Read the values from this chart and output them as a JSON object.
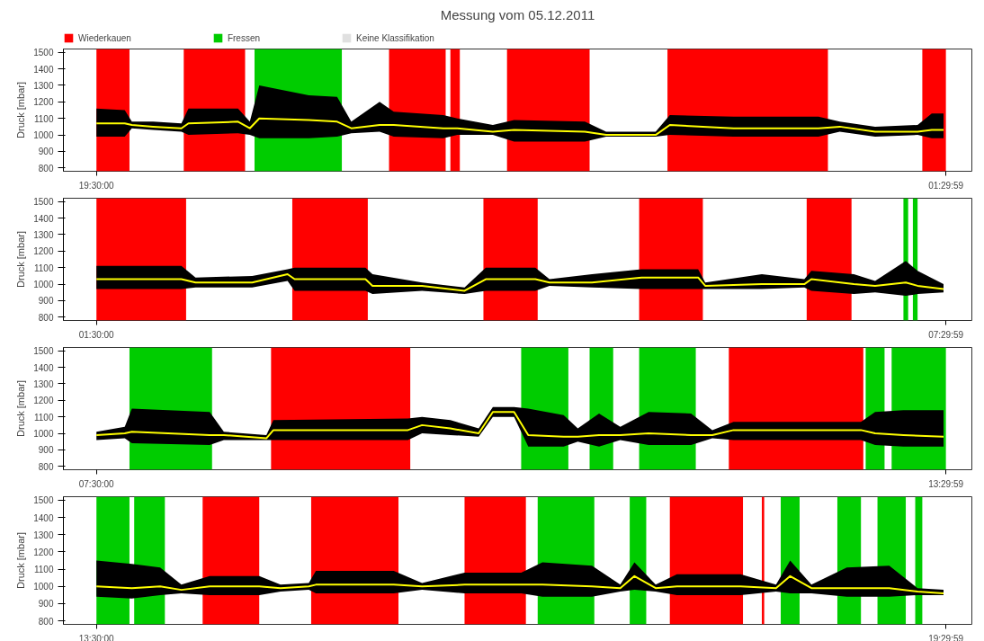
{
  "chart_data": [
    {
      "type": "line",
      "title": "Messung vom 05.12.2011",
      "ylabel": "Druck [mbar]",
      "legend": "top",
      "grid": false,
      "xlim": [
        "2011-12-05T19:16",
        "2011-12-06T01:41"
      ],
      "ylim": [
        780,
        1520
      ],
      "xticks": [
        {
          "value": "2011-12-05T19:30",
          "label": "19:30:00"
        },
        {
          "value": "2011-12-06T01:29:59",
          "label": "01:29:59"
        }
      ],
      "yticks": [
        800,
        900,
        1000,
        1100,
        1200,
        1300,
        1400,
        1500
      ],
      "bands": [
        {
          "axis": "x",
          "from": "2011-12-05T19:30",
          "to": "2011-12-05T19:44",
          "color": "#ff0000"
        },
        {
          "axis": "x",
          "from": "2011-12-05T20:07",
          "to": "2011-12-05T20:33",
          "color": "#ff0000"
        },
        {
          "axis": "x",
          "from": "2011-12-05T20:37",
          "to": "2011-12-05T21:14",
          "color": "#00cc00"
        },
        {
          "axis": "x",
          "from": "2011-12-05T21:34",
          "to": "2011-12-05T21:58",
          "color": "#ff0000"
        },
        {
          "axis": "x",
          "from": "2011-12-05T22:00",
          "to": "2011-12-05T22:04",
          "color": "#ff0000"
        },
        {
          "axis": "x",
          "from": "2011-12-05T22:24",
          "to": "2011-12-05T22:59",
          "color": "#ff0000"
        },
        {
          "axis": "x",
          "from": "2011-12-05T23:32",
          "to": "2011-12-06T00:40",
          "color": "#ff0000"
        },
        {
          "axis": "x",
          "from": "2011-12-06T01:20",
          "to": "2011-12-06T01:30",
          "color": "#ff0000"
        }
      ],
      "series": [
        {
          "name": "Wiederkauen",
          "type": "area",
          "color": "#ff0000"
        },
        {
          "name": "Fressen",
          "type": "area",
          "color": "#00cc00"
        },
        {
          "name": "Keine Klassifikation",
          "type": "area",
          "color": "#e0e0e0"
        },
        {
          "color": "#ffff00",
          "x": [
            "2011-12-05T19:30",
            "2011-12-05T19:42",
            "2011-12-05T19:45",
            "2011-12-05T19:54",
            "2011-12-05T20:06",
            "2011-12-05T20:09",
            "2011-12-05T20:30",
            "2011-12-05T20:35",
            "2011-12-05T20:39",
            "2011-12-05T21:00",
            "2011-12-05T21:12",
            "2011-12-05T21:18",
            "2011-12-05T21:30",
            "2011-12-05T21:36",
            "2011-12-05T21:57",
            "2011-12-05T22:03",
            "2011-12-05T22:18",
            "2011-12-05T22:27",
            "2011-12-05T22:57",
            "2011-12-05T23:06",
            "2011-12-05T23:27",
            "2011-12-05T23:33",
            "2011-12-06T00:00",
            "2011-12-06T00:36",
            "2011-12-06T00:45",
            "2011-12-06T01:00",
            "2011-12-06T01:18",
            "2011-12-06T01:24",
            "2011-12-06T01:29"
          ],
          "values": [
            1070,
            1070,
            1060,
            1050,
            1040,
            1070,
            1080,
            1040,
            1100,
            1090,
            1080,
            1040,
            1060,
            1060,
            1040,
            1040,
            1020,
            1030,
            1020,
            1000,
            1000,
            1060,
            1040,
            1040,
            1050,
            1020,
            1020,
            1030,
            1030
          ],
          "lower": [
            990,
            990,
            1040,
            1030,
            1020,
            1000,
            1010,
            1000,
            980,
            980,
            990,
            1010,
            1020,
            990,
            980,
            1000,
            1000,
            960,
            960,
            990,
            990,
            1000,
            990,
            990,
            1020,
            990,
            1000,
            980,
            980
          ],
          "upper": [
            1160,
            1150,
            1080,
            1080,
            1070,
            1160,
            1160,
            1080,
            1300,
            1240,
            1230,
            1080,
            1200,
            1140,
            1120,
            1100,
            1060,
            1090,
            1080,
            1020,
            1020,
            1120,
            1110,
            1110,
            1080,
            1050,
            1060,
            1130,
            1130
          ]
        }
      ]
    },
    {
      "type": "line",
      "ylabel": "Druck [mbar]",
      "grid": false,
      "xlim": [
        "2011-12-06T01:16",
        "2011-12-06T07:41"
      ],
      "ylim": [
        780,
        1520
      ],
      "xticks": [
        {
          "value": "2011-12-06T01:30",
          "label": "01:30:00"
        },
        {
          "value": "2011-12-06T07:29:59",
          "label": "07:29:59"
        }
      ],
      "yticks": [
        800,
        900,
        1000,
        1100,
        1200,
        1300,
        1400,
        1500
      ],
      "bands": [
        {
          "axis": "x",
          "from": "2011-12-06T01:30",
          "to": "2011-12-06T02:08",
          "color": "#ff0000"
        },
        {
          "axis": "x",
          "from": "2011-12-06T02:53",
          "to": "2011-12-06T03:25",
          "color": "#ff0000"
        },
        {
          "axis": "x",
          "from": "2011-12-06T04:14",
          "to": "2011-12-06T04:37",
          "color": "#ff0000"
        },
        {
          "axis": "x",
          "from": "2011-12-06T05:20",
          "to": "2011-12-06T05:47",
          "color": "#ff0000"
        },
        {
          "axis": "x",
          "from": "2011-12-06T06:31",
          "to": "2011-12-06T06:50",
          "color": "#ff0000"
        },
        {
          "axis": "x",
          "from": "2011-12-06T07:12",
          "to": "2011-12-06T07:14",
          "color": "#00cc00"
        },
        {
          "axis": "x",
          "from": "2011-12-06T07:16",
          "to": "2011-12-06T07:18",
          "color": "#00cc00"
        }
      ],
      "series": [
        {
          "color": "#ffff00",
          "x": [
            "2011-12-06T01:30",
            "2011-12-06T02:06",
            "2011-12-06T02:12",
            "2011-12-06T02:36",
            "2011-12-06T02:51",
            "2011-12-06T02:54",
            "2011-12-06T03:24",
            "2011-12-06T03:27",
            "2011-12-06T03:48",
            "2011-12-06T04:06",
            "2011-12-06T04:15",
            "2011-12-06T04:36",
            "2011-12-06T04:42",
            "2011-12-06T05:00",
            "2011-12-06T05:21",
            "2011-12-06T05:45",
            "2011-12-06T05:48",
            "2011-12-06T06:12",
            "2011-12-06T06:30",
            "2011-12-06T06:33",
            "2011-12-06T06:51",
            "2011-12-06T07:00",
            "2011-12-06T07:13",
            "2011-12-06T07:18",
            "2011-12-06T07:29"
          ],
          "values": [
            1030,
            1030,
            1010,
            1010,
            1060,
            1030,
            1030,
            990,
            990,
            960,
            1030,
            1030,
            1010,
            1010,
            1040,
            1040,
            990,
            1000,
            1000,
            1030,
            1000,
            990,
            1010,
            990,
            970
          ],
          "lower": [
            970,
            970,
            980,
            980,
            1020,
            960,
            960,
            940,
            960,
            940,
            960,
            960,
            990,
            980,
            970,
            970,
            970,
            970,
            980,
            960,
            940,
            950,
            930,
            940,
            950
          ],
          "upper": [
            1110,
            1110,
            1040,
            1050,
            1090,
            1100,
            1100,
            1060,
            1010,
            980,
            1100,
            1100,
            1030,
            1060,
            1090,
            1090,
            1010,
            1060,
            1030,
            1080,
            1060,
            1020,
            1140,
            1080,
            1000
          ]
        }
      ]
    },
    {
      "type": "line",
      "ylabel": "Druck [mbar]",
      "grid": false,
      "xlim": [
        "2011-12-06T07:16",
        "2011-12-06T13:41"
      ],
      "ylim": [
        780,
        1520
      ],
      "xticks": [
        {
          "value": "2011-12-06T07:30",
          "label": "07:30:00"
        },
        {
          "value": "2011-12-06T13:29:59",
          "label": "13:29:59"
        }
      ],
      "yticks": [
        800,
        900,
        1000,
        1100,
        1200,
        1300,
        1400,
        1500
      ],
      "bands": [
        {
          "axis": "x",
          "from": "2011-12-06T07:44",
          "to": "2011-12-06T08:19",
          "color": "#00cc00"
        },
        {
          "axis": "x",
          "from": "2011-12-06T08:44",
          "to": "2011-12-06T09:43",
          "color": "#ff0000"
        },
        {
          "axis": "x",
          "from": "2011-12-06T10:30",
          "to": "2011-12-06T10:50",
          "color": "#00cc00"
        },
        {
          "axis": "x",
          "from": "2011-12-06T10:59",
          "to": "2011-12-06T11:09",
          "color": "#00cc00"
        },
        {
          "axis": "x",
          "from": "2011-12-06T11:20",
          "to": "2011-12-06T11:44",
          "color": "#00cc00"
        },
        {
          "axis": "x",
          "from": "2011-12-06T11:58",
          "to": "2011-12-06T12:55",
          "color": "#ff0000"
        },
        {
          "axis": "x",
          "from": "2011-12-06T12:56",
          "to": "2011-12-06T13:04",
          "color": "#00cc00"
        },
        {
          "axis": "x",
          "from": "2011-12-06T13:07",
          "to": "2011-12-06T13:30",
          "color": "#00cc00"
        }
      ],
      "series": [
        {
          "color": "#ffff00",
          "x": [
            "2011-12-06T07:30",
            "2011-12-06T07:42",
            "2011-12-06T07:45",
            "2011-12-06T08:18",
            "2011-12-06T08:24",
            "2011-12-06T08:42",
            "2011-12-06T08:45",
            "2011-12-06T09:42",
            "2011-12-06T09:48",
            "2011-12-06T10:00",
            "2011-12-06T10:12",
            "2011-12-06T10:18",
            "2011-12-06T10:27",
            "2011-12-06T10:33",
            "2011-12-06T10:48",
            "2011-12-06T10:54",
            "2011-12-06T11:03",
            "2011-12-06T11:12",
            "2011-12-06T11:24",
            "2011-12-06T11:42",
            "2011-12-06T11:51",
            "2011-12-06T12:00",
            "2011-12-06T12:54",
            "2011-12-06T13:00",
            "2011-12-06T13:12",
            "2011-12-06T13:29"
          ],
          "values": [
            990,
            1000,
            1010,
            990,
            990,
            970,
            1020,
            1020,
            1050,
            1030,
            1000,
            1130,
            1130,
            990,
            980,
            980,
            990,
            990,
            1000,
            990,
            990,
            1020,
            1020,
            1000,
            990,
            980
          ],
          "lower": [
            960,
            970,
            940,
            930,
            960,
            960,
            960,
            960,
            1000,
            990,
            980,
            1100,
            1100,
            920,
            920,
            950,
            920,
            960,
            930,
            930,
            970,
            960,
            960,
            930,
            920,
            920
          ],
          "upper": [
            1010,
            1040,
            1150,
            1130,
            1010,
            990,
            1080,
            1090,
            1100,
            1080,
            1030,
            1160,
            1160,
            1150,
            1110,
            1030,
            1120,
            1040,
            1130,
            1120,
            1020,
            1070,
            1070,
            1130,
            1140,
            1140
          ]
        }
      ]
    },
    {
      "type": "line",
      "ylabel": "Druck [mbar]",
      "grid": false,
      "xlim": [
        "2011-12-06T13:16",
        "2011-12-06T19:41"
      ],
      "ylim": [
        780,
        1520
      ],
      "xticks": [
        {
          "value": "2011-12-06T13:30",
          "label": "13:30:00"
        },
        {
          "value": "2011-12-06T19:29:59",
          "label": "19:29:59"
        }
      ],
      "yticks": [
        800,
        900,
        1000,
        1100,
        1200,
        1300,
        1400,
        1500
      ],
      "bands": [
        {
          "axis": "x",
          "from": "2011-12-06T13:30",
          "to": "2011-12-06T13:44",
          "color": "#00cc00"
        },
        {
          "axis": "x",
          "from": "2011-12-06T13:46",
          "to": "2011-12-06T13:59",
          "color": "#00cc00"
        },
        {
          "axis": "x",
          "from": "2011-12-06T14:15",
          "to": "2011-12-06T14:39",
          "color": "#ff0000"
        },
        {
          "axis": "x",
          "from": "2011-12-06T15:01",
          "to": "2011-12-06T15:38",
          "color": "#ff0000"
        },
        {
          "axis": "x",
          "from": "2011-12-06T16:06",
          "to": "2011-12-06T16:32",
          "color": "#ff0000"
        },
        {
          "axis": "x",
          "from": "2011-12-06T16:37",
          "to": "2011-12-06T17:01",
          "color": "#00cc00"
        },
        {
          "axis": "x",
          "from": "2011-12-06T17:16",
          "to": "2011-12-06T17:23",
          "color": "#00cc00"
        },
        {
          "axis": "x",
          "from": "2011-12-06T17:33",
          "to": "2011-12-06T18:04",
          "color": "#ff0000"
        },
        {
          "axis": "x",
          "from": "2011-12-06T18:12",
          "to": "2011-12-06T18:13",
          "color": "#ff0000"
        },
        {
          "axis": "x",
          "from": "2011-12-06T18:20",
          "to": "2011-12-06T18:28",
          "color": "#00cc00"
        },
        {
          "axis": "x",
          "from": "2011-12-06T18:44",
          "to": "2011-12-06T18:54",
          "color": "#00cc00"
        },
        {
          "axis": "x",
          "from": "2011-12-06T19:01",
          "to": "2011-12-06T19:13",
          "color": "#00cc00"
        },
        {
          "axis": "x",
          "from": "2011-12-06T19:17",
          "to": "2011-12-06T19:20",
          "color": "#00cc00"
        }
      ],
      "series": [
        {
          "color": "#ffff00",
          "x": [
            "2011-12-06T13:30",
            "2011-12-06T13:45",
            "2011-12-06T13:57",
            "2011-12-06T14:06",
            "2011-12-06T14:18",
            "2011-12-06T14:39",
            "2011-12-06T14:48",
            "2011-12-06T15:00",
            "2011-12-06T15:03",
            "2011-12-06T15:36",
            "2011-12-06T15:48",
            "2011-12-06T16:06",
            "2011-12-06T16:30",
            "2011-12-06T16:39",
            "2011-12-06T17:00",
            "2011-12-06T17:12",
            "2011-12-06T17:18",
            "2011-12-06T17:27",
            "2011-12-06T17:36",
            "2011-12-06T18:03",
            "2011-12-06T18:18",
            "2011-12-06T18:24",
            "2011-12-06T18:33",
            "2011-12-06T18:48",
            "2011-12-06T19:06",
            "2011-12-06T19:18",
            "2011-12-06T19:29"
          ],
          "values": [
            1000,
            990,
            1000,
            980,
            1000,
            1000,
            990,
            1000,
            1010,
            1010,
            1000,
            1010,
            1010,
            1010,
            1000,
            990,
            1060,
            990,
            1000,
            1000,
            990,
            1060,
            990,
            990,
            990,
            970,
            960
          ],
          "lower": [
            940,
            930,
            950,
            960,
            950,
            950,
            970,
            980,
            960,
            960,
            980,
            960,
            960,
            940,
            940,
            970,
            980,
            970,
            950,
            950,
            970,
            960,
            960,
            940,
            940,
            950,
            950
          ],
          "upper": [
            1150,
            1130,
            1110,
            1010,
            1060,
            1060,
            1010,
            1020,
            1090,
            1090,
            1020,
            1080,
            1080,
            1140,
            1120,
            1010,
            1140,
            1010,
            1070,
            1070,
            1010,
            1150,
            1010,
            1110,
            1120,
            990,
            980
          ]
        }
      ]
    }
  ]
}
